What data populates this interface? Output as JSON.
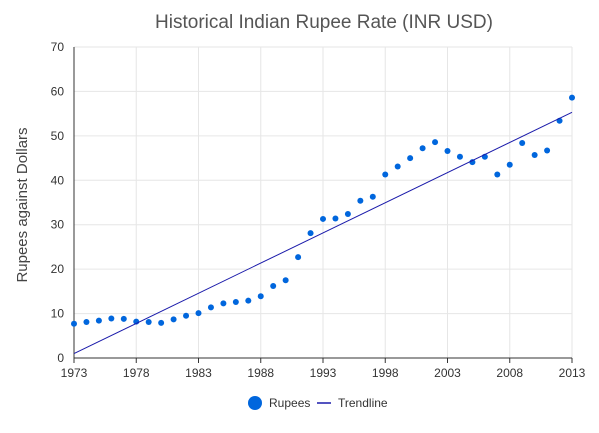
{
  "chart_data": {
    "type": "scatter",
    "title": "Historical Indian Rupee Rate (INR USD)",
    "xlabel": "",
    "ylabel": "Rupees against Dollars",
    "xlim": [
      1973,
      2013
    ],
    "ylim": [
      0,
      70
    ],
    "x_ticks": [
      "1973",
      "1978",
      "1983",
      "1988",
      "1993",
      "1998",
      "2003",
      "2008",
      "2013"
    ],
    "y_ticks": [
      "0",
      "10",
      "20",
      "30",
      "40",
      "50",
      "60",
      "70"
    ],
    "grid": true,
    "legend": "bottom",
    "series": [
      {
        "name": "Rupees",
        "type": "scatter",
        "color": "#0066dd",
        "x": [
          1973,
          1974,
          1975,
          1976,
          1977,
          1978,
          1979,
          1980,
          1981,
          1982,
          1983,
          1984,
          1985,
          1986,
          1987,
          1988,
          1989,
          1990,
          1991,
          1992,
          1993,
          1994,
          1995,
          1996,
          1997,
          1998,
          1999,
          2000,
          2001,
          2002,
          2003,
          2004,
          2005,
          2006,
          2007,
          2008,
          2009,
          2010,
          2011,
          2012,
          2013
        ],
        "y": [
          7.7,
          8.1,
          8.4,
          8.9,
          8.8,
          8.2,
          8.1,
          7.9,
          8.7,
          9.5,
          10.1,
          11.4,
          12.3,
          12.6,
          12.9,
          13.9,
          16.2,
          17.5,
          22.7,
          28.1,
          31.3,
          31.4,
          32.4,
          35.4,
          36.3,
          41.3,
          43.1,
          45.0,
          47.2,
          48.6,
          46.6,
          45.3,
          44.1,
          45.3,
          41.3,
          43.5,
          48.4,
          45.7,
          46.7,
          53.4,
          58.6
        ]
      },
      {
        "name": "Trendline",
        "type": "line",
        "color": "#1a1aaa",
        "x": [
          1973,
          2013
        ],
        "y": [
          1.0,
          55.3
        ]
      }
    ]
  }
}
